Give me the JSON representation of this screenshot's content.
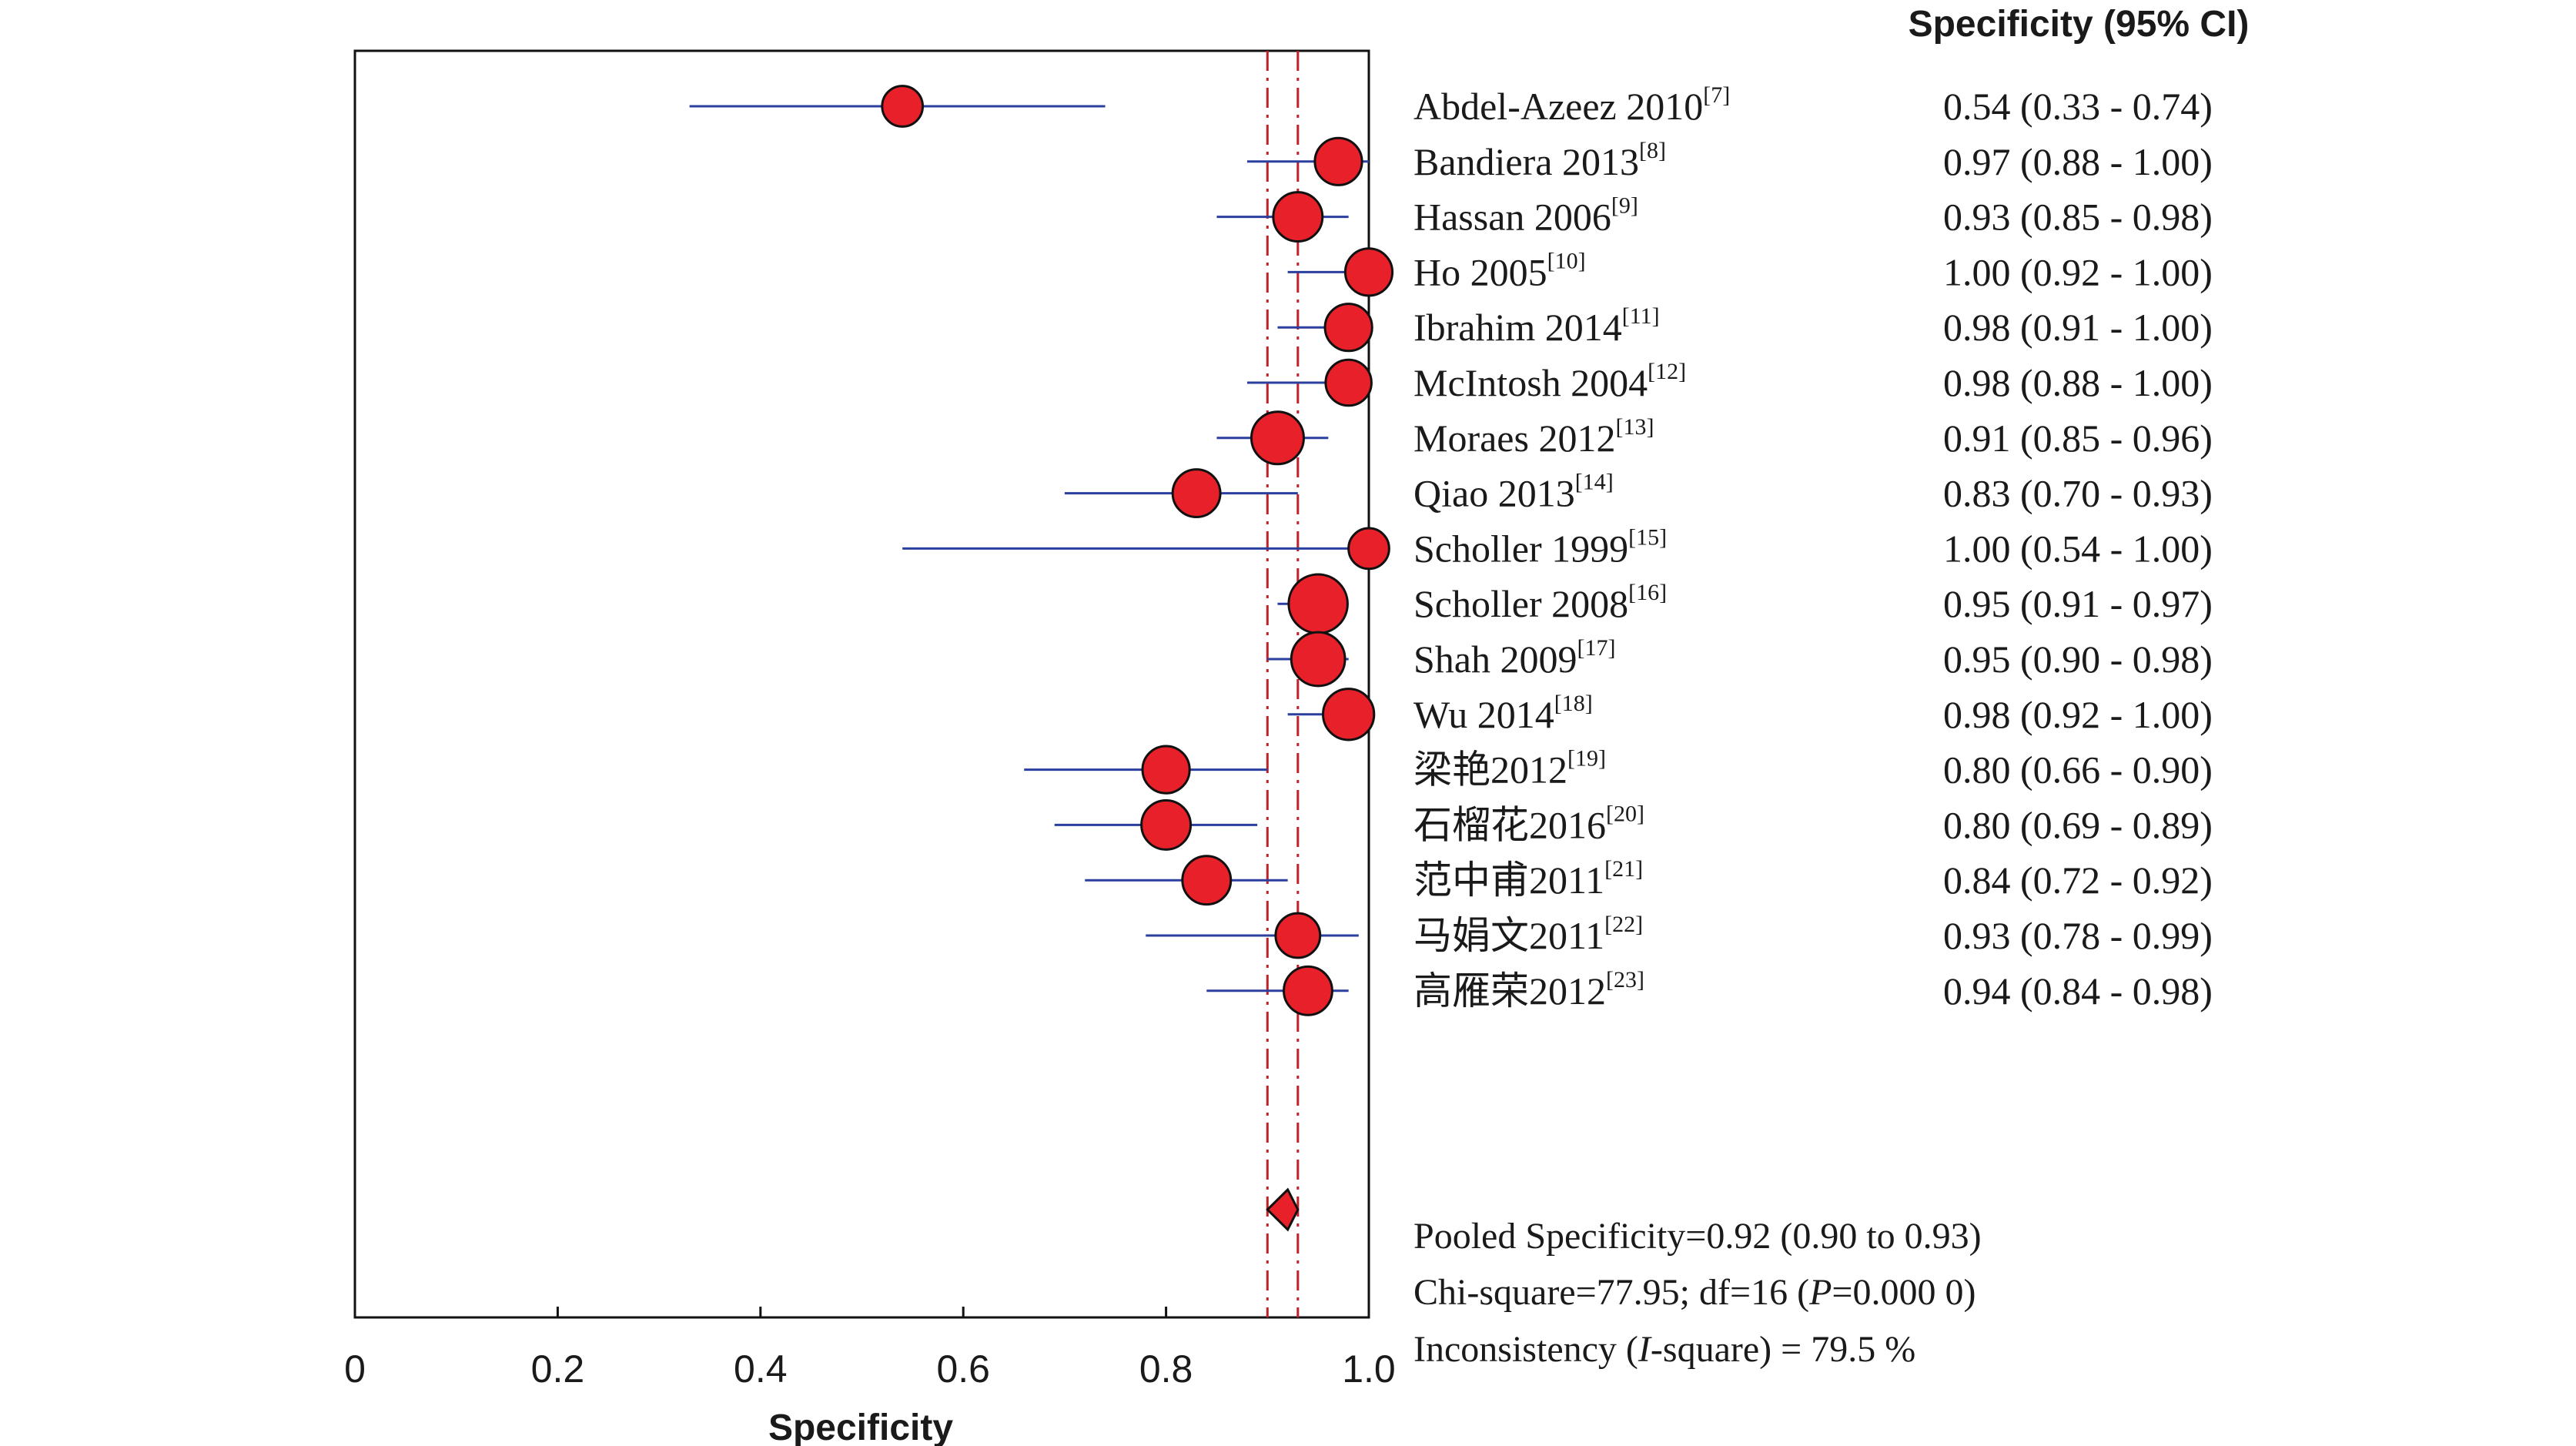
{
  "chart_data": {
    "type": "forest",
    "xlabel": "Specificity",
    "xlim": [
      0,
      1.0
    ],
    "xticks": [
      "0",
      "0.2",
      "0.4",
      "0.6",
      "0.8",
      "1.0"
    ],
    "column_header": "Specificity (95% CI)",
    "studies": [
      {
        "name": "Abdel-Azeez 2010",
        "ref": "[7]",
        "ci_text": "0.54 (0.33 - 0.74)",
        "est": 0.54,
        "lo": 0.33,
        "hi": 0.74,
        "weight": 0.55
      },
      {
        "name": "Bandiera 2013",
        "ref": "[8]",
        "ci_text": "0.97 (0.88 - 1.00)",
        "est": 0.97,
        "lo": 0.88,
        "hi": 1.0,
        "weight": 0.8
      },
      {
        "name": "Hassan 2006",
        "ref": "[9]",
        "ci_text": "0.93 (0.85 - 0.98)",
        "est": 0.93,
        "lo": 0.85,
        "hi": 0.98,
        "weight": 0.88
      },
      {
        "name": "Ho 2005",
        "ref": "[10]",
        "ci_text": "1.00 (0.92 - 1.00)",
        "est": 1.0,
        "lo": 0.92,
        "hi": 1.0,
        "weight": 0.8
      },
      {
        "name": "Ibrahim 2014",
        "ref": "[11]",
        "ci_text": "0.98 (0.91 - 1.00)",
        "est": 0.98,
        "lo": 0.91,
        "hi": 1.0,
        "weight": 0.8
      },
      {
        "name": "McIntosh 2004",
        "ref": "[12]",
        "ci_text": "0.98 (0.88 - 1.00)",
        "est": 0.98,
        "lo": 0.88,
        "hi": 1.0,
        "weight": 0.75
      },
      {
        "name": "Moraes 2012",
        "ref": "[13]",
        "ci_text": "0.91 (0.85 - 0.96)",
        "est": 0.91,
        "lo": 0.85,
        "hi": 0.96,
        "weight": 1.0
      },
      {
        "name": "Qiao 2013",
        "ref": "[14]",
        "ci_text": "0.83 (0.70 - 0.93)",
        "est": 0.83,
        "lo": 0.7,
        "hi": 0.93,
        "weight": 0.82
      },
      {
        "name": "Scholler 1999",
        "ref": "[15]",
        "ci_text": "1.00 (0.54 - 1.00)",
        "est": 1.0,
        "lo": 0.54,
        "hi": 1.0,
        "weight": 0.55
      },
      {
        "name": "Scholler 2008",
        "ref": "[16]",
        "ci_text": "0.95 (0.91 - 0.97)",
        "est": 0.95,
        "lo": 0.91,
        "hi": 0.97,
        "weight": 1.25
      },
      {
        "name": "Shah 2009",
        "ref": "[17]",
        "ci_text": "0.95 (0.90 - 0.98)",
        "est": 0.95,
        "lo": 0.9,
        "hi": 0.98,
        "weight": 1.05
      },
      {
        "name": "Wu 2014",
        "ref": "[18]",
        "ci_text": "0.98 (0.92 - 1.00)",
        "est": 0.98,
        "lo": 0.92,
        "hi": 1.0,
        "weight": 0.95
      },
      {
        "name": "梁艳2012",
        "ref": "[19]",
        "ci_text": "0.80 (0.66 - 0.90)",
        "est": 0.8,
        "lo": 0.66,
        "hi": 0.9,
        "weight": 0.8
      },
      {
        "name": "石榴花2016",
        "ref": "[20]",
        "ci_text": "0.80 (0.69 - 0.89)",
        "est": 0.8,
        "lo": 0.69,
        "hi": 0.89,
        "weight": 0.88
      },
      {
        "name": "范中甫2011",
        "ref": "[21]",
        "ci_text": "0.84 (0.72 - 0.92)",
        "est": 0.84,
        "lo": 0.72,
        "hi": 0.92,
        "weight": 0.85
      },
      {
        "name": "马娟文2011",
        "ref": "[22]",
        "ci_text": "0.93 (0.78 - 0.99)",
        "est": 0.93,
        "lo": 0.78,
        "hi": 0.99,
        "weight": 0.7
      },
      {
        "name": "高雁荣2012",
        "ref": "[23]",
        "ci_text": "0.94 (0.84 - 0.98)",
        "est": 0.94,
        "lo": 0.84,
        "hi": 0.98,
        "weight": 0.85
      }
    ],
    "pooled": {
      "est": 0.92,
      "lo": 0.9,
      "hi": 0.93
    },
    "reference_lines": [
      0.9,
      0.93
    ],
    "summary": {
      "pooled_text": "Pooled Specificity=0.92 (0.90 to 0.93)",
      "chi_pre": "Chi-square=77.95; df=16 (",
      "chi_italic": "P",
      "chi_post": "=0.000 0)",
      "incons_pre": "Inconsistency (",
      "incons_italic": "I",
      "incons_post": "-square) = 79.5 %"
    },
    "colors": {
      "marker_fill": "#e8202a",
      "marker_stroke": "#111111",
      "ci_line": "#2b3f9e",
      "ref_line": "#c0202a",
      "axis": "#111111",
      "text": "#1a1a1a"
    }
  }
}
